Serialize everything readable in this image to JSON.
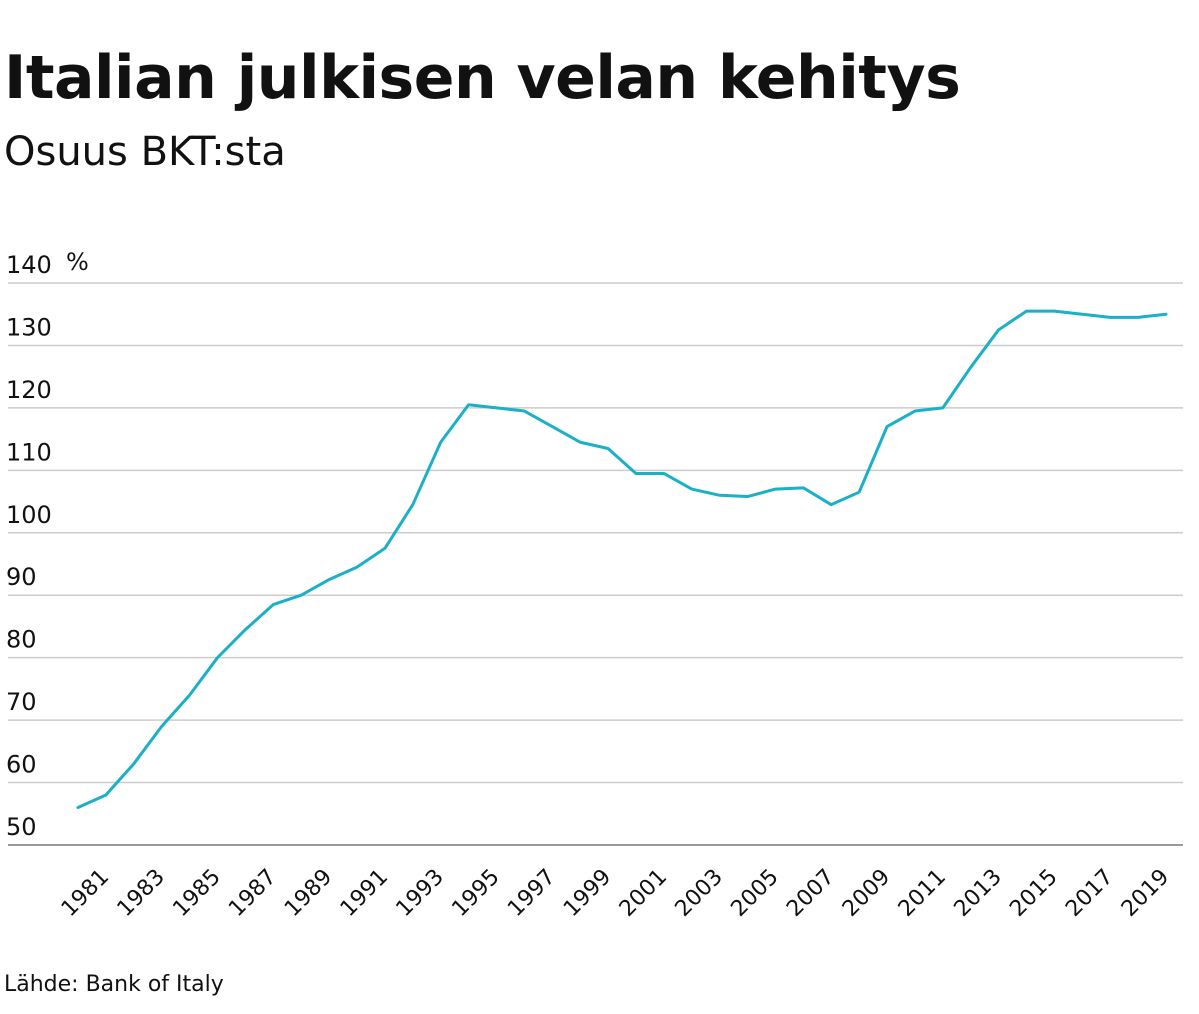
{
  "header": {
    "title": "Italian julkisen velan kehitys",
    "subtitle": "Osuus BKT:sta"
  },
  "footer": {
    "source": "Lähde: Bank of Italy"
  },
  "chart_data": {
    "type": "line",
    "ylabel": "%",
    "ylim": [
      50,
      140
    ],
    "yticks": [
      50,
      60,
      70,
      80,
      90,
      100,
      110,
      120,
      130,
      140
    ],
    "grid": true,
    "legend": "none",
    "line_color": "#1bb0c7",
    "x_tick_labels": [
      "1981",
      "1983",
      "1985",
      "1987",
      "1989",
      "1991",
      "1993",
      "1995",
      "1997",
      "1999",
      "2001",
      "2003",
      "2005",
      "2007",
      "2009",
      "2011",
      "2013",
      "2015",
      "2017",
      "2019"
    ],
    "x": [
      1980,
      1981,
      1982,
      1983,
      1984,
      1985,
      1986,
      1987,
      1988,
      1989,
      1990,
      1991,
      1992,
      1993,
      1994,
      1995,
      1996,
      1997,
      1998,
      1999,
      2000,
      2001,
      2002,
      2003,
      2004,
      2005,
      2006,
      2007,
      2008,
      2009,
      2010,
      2011,
      2012,
      2013,
      2014,
      2015,
      2016,
      2017,
      2018,
      2019
    ],
    "series": [
      {
        "values": [
          56.0,
          58.0,
          63.0,
          69.0,
          74.0,
          80.0,
          84.5,
          88.5,
          90.0,
          92.5,
          94.5,
          97.5,
          104.5,
          114.5,
          120.5,
          120.0,
          119.5,
          117.0,
          114.5,
          113.5,
          109.5,
          109.5,
          107.0,
          106.0,
          105.8,
          107.0,
          107.2,
          104.5,
          106.5,
          117.0,
          119.5,
          120.0,
          126.5,
          132.5,
          135.5,
          135.5,
          135.0,
          134.5,
          134.5,
          135.0
        ]
      }
    ]
  }
}
